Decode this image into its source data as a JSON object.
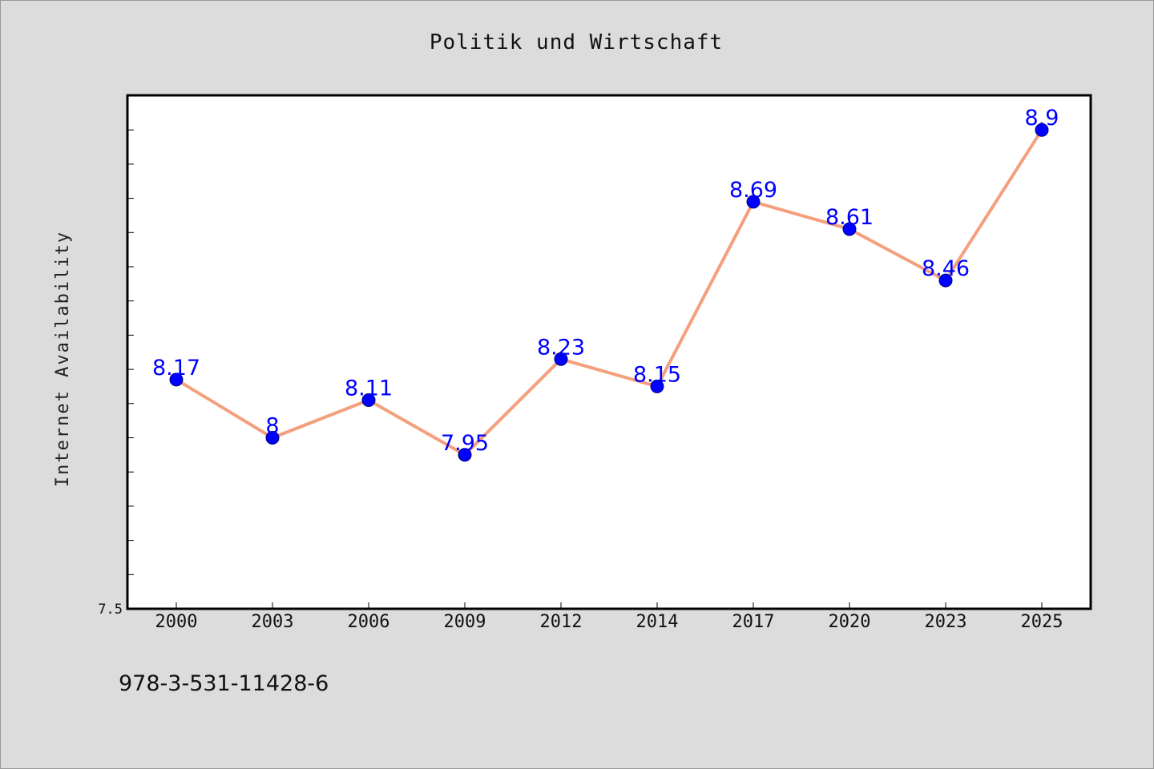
{
  "chart_data": {
    "type": "line",
    "title": "Politik und Wirtschaft",
    "xlabel": "",
    "ylabel": "Internet Availability",
    "categories": [
      "2000",
      "2003",
      "2006",
      "2009",
      "2012",
      "2014",
      "2017",
      "2020",
      "2023",
      "2025"
    ],
    "values": [
      8.17,
      8,
      8.11,
      7.95,
      8.23,
      8.15,
      8.69,
      8.61,
      8.46,
      8.9
    ],
    "data_labels": [
      "8.17",
      "8",
      "8.11",
      "7.95",
      "8.23",
      "8.15",
      "8.69",
      "8.61",
      "8.46",
      "8.9"
    ],
    "ylim": [
      7.5,
      9.0
    ],
    "y_tick_labels": [
      {
        "value": 7.5,
        "label": "7.5"
      }
    ],
    "grid": false,
    "line_color": "#f4a07e",
    "marker_color": "#0000ff",
    "label_color": "#0000ff"
  },
  "footer": {
    "isbn": "978-3-531-11428-6"
  }
}
